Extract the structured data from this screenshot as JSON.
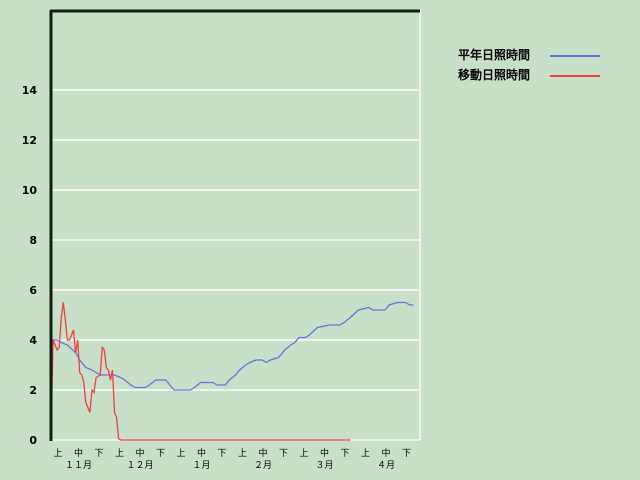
{
  "chart_data": {
    "type": "line",
    "title": "",
    "xlabel": "",
    "ylabel": "",
    "ylim": [
      0,
      16
    ],
    "y_ticks": [
      "0",
      "2",
      "4",
      "6",
      "8",
      "10",
      "12",
      "14"
    ],
    "grid": true,
    "legend_position": "top-right",
    "x_dekad_labels": [
      "上",
      "中",
      "下",
      "上",
      "中",
      "下",
      "上",
      "中",
      "下",
      "上",
      "中",
      "下",
      "上",
      "中",
      "下",
      "上",
      "中",
      "下"
    ],
    "x_month_labels": [
      "１１月",
      "１２月",
      "１月",
      "２月",
      "３月",
      "４月"
    ],
    "series": [
      {
        "name": "平年日照時間",
        "color": "#6b70e0",
        "points": [
          [
            "11-01",
            0
          ],
          [
            "11-01",
            4.0
          ],
          [
            "11-04",
            4.0
          ],
          [
            "11-06",
            3.9
          ],
          [
            "11-09",
            3.8
          ],
          [
            "11-13",
            3.5
          ],
          [
            "11-15",
            3.2
          ],
          [
            "11-18",
            2.9
          ],
          [
            "11-21",
            2.8
          ],
          [
            "11-25",
            2.6
          ],
          [
            "12-02",
            2.6
          ],
          [
            "12-05",
            2.5
          ],
          [
            "12-07",
            2.4
          ],
          [
            "12-10",
            2.2
          ],
          [
            "12-12",
            2.1
          ],
          [
            "12-17",
            2.1
          ],
          [
            "12-19",
            2.2
          ],
          [
            "12-22",
            2.4
          ],
          [
            "12-27",
            2.4
          ],
          [
            "12-29",
            2.2
          ],
          [
            "12-31",
            2.0
          ],
          [
            "01-08",
            2.0
          ],
          [
            "01-10",
            2.1
          ],
          [
            "01-13",
            2.3
          ],
          [
            "01-19",
            2.3
          ],
          [
            "01-21",
            2.2
          ],
          [
            "01-25",
            2.2
          ],
          [
            "01-27",
            2.4
          ],
          [
            "01-30",
            2.6
          ],
          [
            "02-01",
            2.8
          ],
          [
            "02-04",
            3.0
          ],
          [
            "02-06",
            3.1
          ],
          [
            "02-09",
            3.2
          ],
          [
            "02-12",
            3.2
          ],
          [
            "02-14",
            3.1
          ],
          [
            "02-16",
            3.2
          ],
          [
            "02-20",
            3.3
          ],
          [
            "02-23",
            3.6
          ],
          [
            "02-26",
            3.8
          ],
          [
            "02-28",
            3.9
          ],
          [
            "03-02",
            4.1
          ],
          [
            "03-05",
            4.1
          ],
          [
            "03-07",
            4.2
          ],
          [
            "03-11",
            4.5
          ],
          [
            "03-17",
            4.6
          ],
          [
            "03-22",
            4.6
          ],
          [
            "03-24",
            4.7
          ],
          [
            "03-27",
            4.9
          ],
          [
            "03-31",
            5.2
          ],
          [
            "04-05",
            5.3
          ],
          [
            "04-07",
            5.2
          ],
          [
            "04-13",
            5.2
          ],
          [
            "04-15",
            5.4
          ],
          [
            "04-19",
            5.5
          ],
          [
            "04-23",
            5.5
          ],
          [
            "04-25",
            5.4
          ],
          [
            "04-27",
            5.4
          ]
        ]
      },
      {
        "name": "移動日照時間",
        "color": "#f04040",
        "points": [
          [
            "11-01",
            0
          ],
          [
            "11-02",
            4.0
          ],
          [
            "11-03",
            3.8
          ],
          [
            "11-04",
            3.6
          ],
          [
            "11-05",
            3.7
          ],
          [
            "11-06",
            4.9
          ],
          [
            "11-07",
            5.5
          ],
          [
            "11-08",
            4.8
          ],
          [
            "11-09",
            4.0
          ],
          [
            "11-10",
            4.0
          ],
          [
            "11-12",
            4.4
          ],
          [
            "11-13",
            3.5
          ],
          [
            "11-14",
            4.0
          ],
          [
            "11-15",
            2.7
          ],
          [
            "11-16",
            2.6
          ],
          [
            "11-17",
            2.3
          ],
          [
            "11-18",
            1.5
          ],
          [
            "11-20",
            1.1
          ],
          [
            "11-21",
            2.0
          ],
          [
            "11-22",
            1.9
          ],
          [
            "11-23",
            2.5
          ],
          [
            "11-25",
            2.6
          ],
          [
            "11-26",
            3.7
          ],
          [
            "11-27",
            3.6
          ],
          [
            "11-28",
            2.9
          ],
          [
            "11-29",
            2.8
          ],
          [
            "11-30",
            2.4
          ],
          [
            "12-01",
            2.8
          ],
          [
            "12-02",
            1.1
          ],
          [
            "12-03",
            0.9
          ],
          [
            "12-04",
            0.05
          ],
          [
            "12-05",
            0
          ],
          [
            "03-27",
            0
          ]
        ]
      }
    ]
  }
}
